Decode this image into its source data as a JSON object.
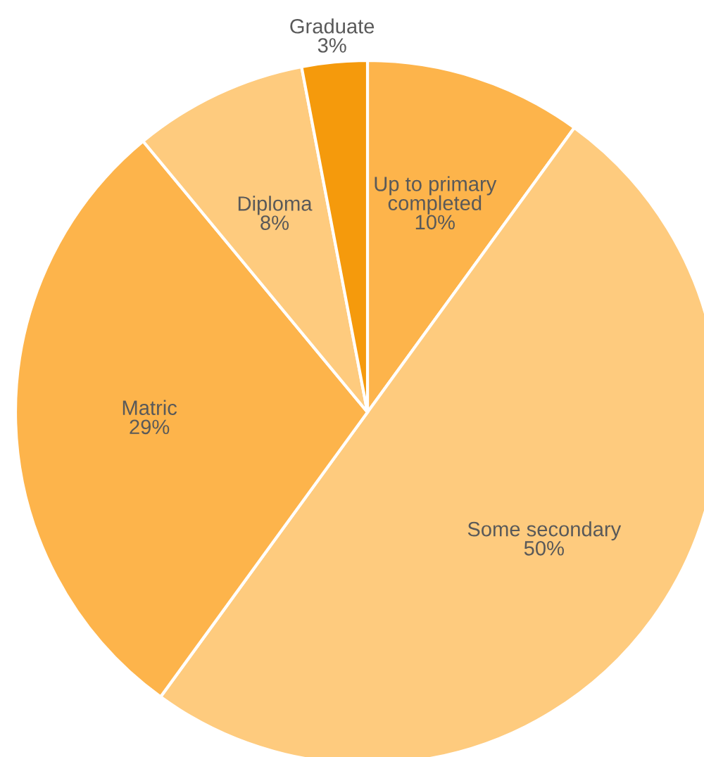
{
  "chart_data": {
    "type": "pie",
    "categories": [
      "Up to primary\ncompleted",
      "Some secondary",
      "Matric",
      "Diploma",
      "Graduate"
    ],
    "values": [
      10,
      50,
      29,
      8,
      3
    ],
    "colors": [
      "#fdb44b",
      "#fecb7e",
      "#fdb44b",
      "#fecb7e",
      "#f59a0c"
    ],
    "value_labels": [
      "10%",
      "50%",
      "29%",
      "8%",
      "3%"
    ]
  }
}
